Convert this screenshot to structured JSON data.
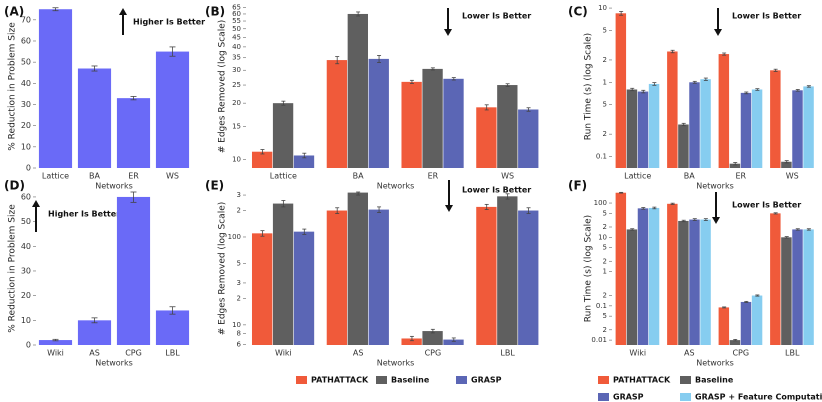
{
  "chart_data": [
    {
      "type": "bar",
      "label": "(A)",
      "annotation": "Higher Is Better",
      "xlabel": "Networks",
      "ylabel": "% Reduction in Problem Size",
      "categories": [
        "Lattice",
        "BA",
        "ER",
        "WS"
      ],
      "values": [
        75,
        47,
        33,
        55
      ],
      "errors": [
        0.7,
        1.2,
        0.8,
        2.2
      ],
      "color": "#6a6af7",
      "ylim": [
        0,
        77
      ],
      "yticks": [
        0,
        10,
        20,
        30,
        40,
        50,
        60,
        70
      ]
    },
    {
      "type": "grouped-bar",
      "label": "(B)",
      "annotation": "Lower Is Better",
      "xlabel": "Networks",
      "ylabel": "# Edges Removed (log Scale)",
      "log_scale": true,
      "categories": [
        "Lattice",
        "BA",
        "ER",
        "WS"
      ],
      "series": [
        {
          "color": "#f05a3a",
          "values": [
            11,
            34,
            26,
            19
          ],
          "errors": [
            0.3,
            1.5,
            0.5,
            0.6
          ]
        },
        {
          "color": "#5f5f5f",
          "values": [
            20,
            60,
            30.5,
            25
          ],
          "errors": [
            0.5,
            1.5,
            0.4,
            0.4
          ]
        },
        {
          "color": "#5b66b5",
          "values": [
            10.5,
            34.5,
            27,
            18.5
          ],
          "errors": [
            0.3,
            1.5,
            0.4,
            0.4
          ]
        }
      ],
      "ylim": [
        9,
        67
      ],
      "yticks": [
        10,
        15,
        20,
        25,
        30,
        35,
        40,
        45,
        50,
        55,
        60,
        65
      ]
    },
    {
      "type": "grouped-bar",
      "label": "(C)",
      "annotation": "Lower Is Better",
      "xlabel": "Networks",
      "ylabel": "Run Time (s) (log Scale)",
      "log_scale": true,
      "categories": [
        "Lattice",
        "BA",
        "ER",
        "WS"
      ],
      "series": [
        {
          "color": "#f05a3a",
          "values": [
            8.5,
            2.6,
            2.4,
            1.45
          ],
          "errors": [
            0.5,
            0.1,
            0.08,
            0.05
          ]
        },
        {
          "color": "#5f5f5f",
          "values": [
            0.8,
            0.27,
            0.08,
            0.085
          ],
          "errors": [
            0.03,
            0.01,
            0.003,
            0.003
          ]
        },
        {
          "color": "#5b66b5",
          "values": [
            0.75,
            1.0,
            0.72,
            0.78
          ],
          "errors": [
            0.03,
            0.03,
            0.02,
            0.02
          ]
        },
        {
          "color": "#86cdf0",
          "values": [
            0.95,
            1.1,
            0.8,
            0.88
          ],
          "errors": [
            0.04,
            0.04,
            0.02,
            0.02
          ]
        }
      ],
      "ylim": [
        0.07,
        11
      ],
      "yticks": [
        0.1,
        {
          "value": 0.2,
          "label": "2"
        },
        {
          "value": 0.5,
          "label": "5"
        },
        1,
        {
          "value": 2,
          "label": "2"
        },
        {
          "value": 5,
          "label": "5"
        },
        10
      ]
    },
    {
      "type": "bar",
      "label": "(D)",
      "annotation": "Higher Is Better",
      "xlabel": "Networks",
      "ylabel": "% Reduction in Problem Size",
      "categories": [
        "Wiki",
        "AS",
        "CPG",
        "LBL"
      ],
      "values": [
        2,
        10,
        60,
        14
      ],
      "errors": [
        0.3,
        1,
        2.2,
        1.5
      ],
      "color": "#6a6af7",
      "ylim": [
        0,
        62
      ],
      "yticks": [
        0,
        10,
        20,
        30,
        40,
        50,
        60
      ]
    },
    {
      "type": "grouped-bar",
      "label": "(E)",
      "annotation": "Lower Is Better",
      "xlabel": "Networks",
      "ylabel": "# Edges Removed (log Scale)",
      "log_scale": true,
      "legend": "below",
      "categories": [
        "Wiki",
        "AS",
        "CPG",
        "LBL"
      ],
      "series": [
        {
          "name": "PATHATTACK",
          "color": "#f05a3a",
          "values": [
            110,
            200,
            7,
            220
          ],
          "errors": [
            8,
            15,
            0.4,
            15
          ]
        },
        {
          "name": "Baseline",
          "color": "#5f5f5f",
          "values": [
            240,
            320,
            8.5,
            290
          ],
          "errors": [
            20,
            20,
            0.4,
            20
          ]
        },
        {
          "name": "GRASP",
          "color": "#5b66b5",
          "values": [
            115,
            205,
            6.8,
            200
          ],
          "errors": [
            8,
            15,
            0.3,
            15
          ]
        }
      ],
      "ylim": [
        5.9,
        325
      ],
      "yticks": [
        {
          "value": 6,
          "label": "6"
        },
        {
          "value": 8,
          "label": "8"
        },
        10,
        {
          "value": 20,
          "label": "2"
        },
        {
          "value": 30,
          "label": "3"
        },
        {
          "value": 50,
          "label": "5"
        },
        100,
        {
          "value": 200,
          "label": "2"
        },
        {
          "value": 300,
          "label": "3"
        }
      ]
    },
    {
      "type": "grouped-bar",
      "label": "(F)",
      "annotation": "Lower Is Better",
      "xlabel": "Networks",
      "ylabel": "Run Time (s) (log Scale)",
      "log_scale": true,
      "legend": "below",
      "categories": [
        "Wiki",
        "AS",
        "CPG",
        "LBL"
      ],
      "series": [
        {
          "name": "PATHATTACK",
          "color": "#f05a3a",
          "values": [
            200,
            95,
            0.09,
            50
          ],
          "errors": [
            5,
            4,
            0.003,
            2
          ]
        },
        {
          "name": "Baseline",
          "color": "#5f5f5f",
          "values": [
            17,
            30,
            0.01,
            10
          ],
          "errors": [
            0.8,
            1.5,
            0.0005,
            0.5
          ]
        },
        {
          "name": "GRASP",
          "color": "#5b66b5",
          "values": [
            70,
            33,
            0.13,
            17
          ],
          "errors": [
            4,
            2,
            0.005,
            0.8
          ]
        },
        {
          "name": "GRASP + Feature Computation",
          "color": "#86cdf0",
          "values": [
            72,
            33,
            0.2,
            17
          ],
          "errors": [
            4,
            2,
            0.008,
            0.8
          ]
        }
      ],
      "ylim": [
        0.0072,
        210
      ],
      "yticks": [
        0.01,
        {
          "value": 0.02,
          "label": "2"
        },
        {
          "value": 0.05,
          "label": "5"
        },
        0.1,
        {
          "value": 0.2,
          "label": "2"
        },
        1,
        {
          "value": 2,
          "label": "2"
        },
        {
          "value": 5,
          "label": "5"
        },
        10,
        {
          "value": 20,
          "label": "2"
        },
        {
          "value": 50,
          "label": "5"
        },
        100
      ]
    }
  ]
}
